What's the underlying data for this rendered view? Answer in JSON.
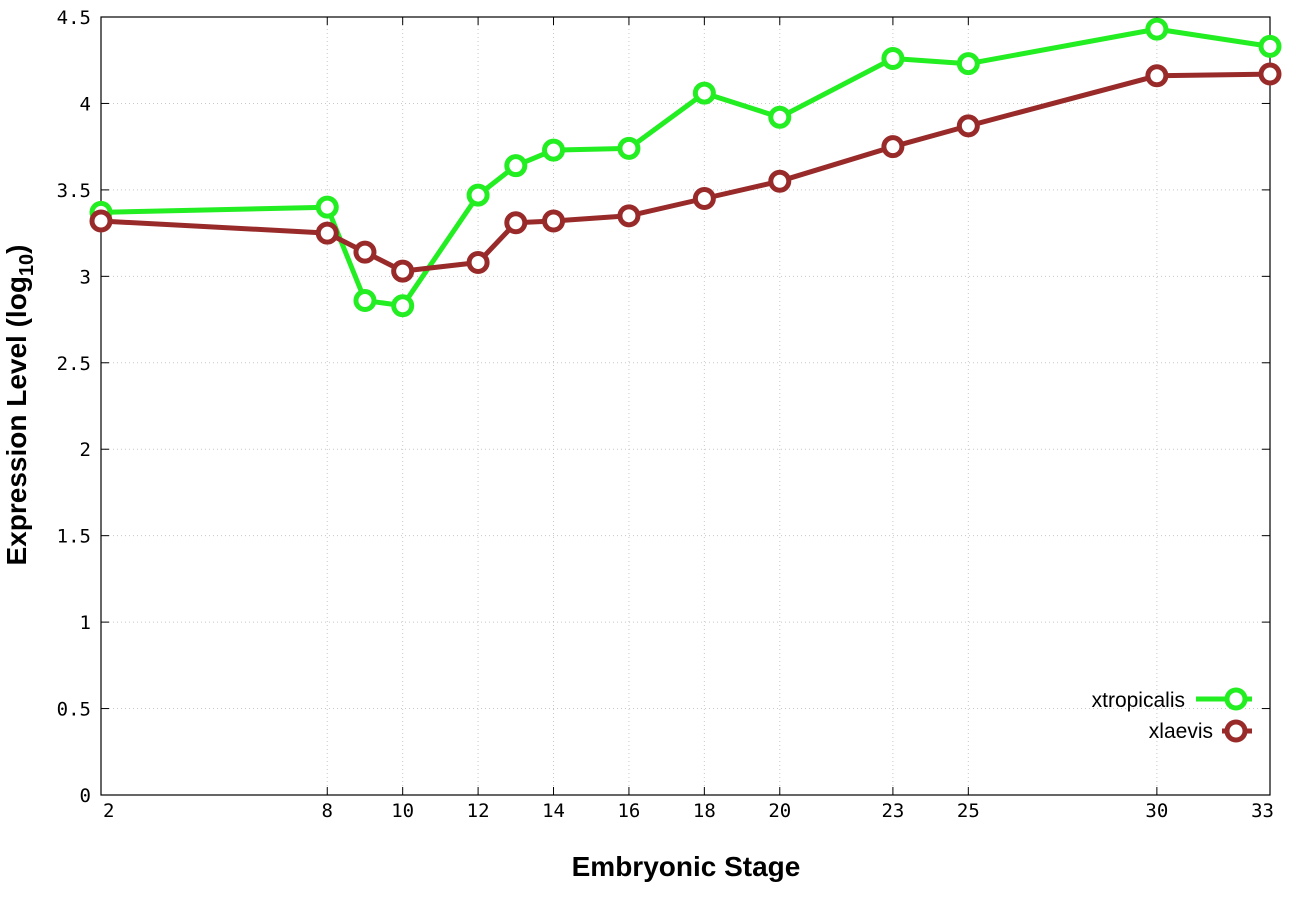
{
  "chart_data": {
    "type": "line",
    "title": "",
    "xlabel": "Embryonic Stage",
    "ylabel_main": "Expression Level (log",
    "ylabel_sub": "10",
    "ylabel_close": ")",
    "x_ticks": [
      2,
      8,
      10,
      12,
      14,
      16,
      18,
      20,
      23,
      25,
      30,
      33
    ],
    "x_tick_labels": [
      "2",
      "8",
      "10",
      "12",
      "14",
      "16",
      "18",
      "20",
      "23",
      "25",
      "30",
      "33"
    ],
    "y_ticks": [
      0,
      0.5,
      1,
      1.5,
      2,
      2.5,
      3,
      3.5,
      4,
      4.5
    ],
    "y_tick_labels": [
      "0",
      "0.5",
      "1",
      "1.5",
      "2",
      "2.5",
      "3",
      "3.5",
      "4",
      "4.5"
    ],
    "ylim": [
      0,
      4.5
    ],
    "grid": true,
    "legend_position": "bottom-right",
    "series": [
      {
        "name": "xtropicalis",
        "color": "#22ee22",
        "x": [
          2,
          8,
          9,
          10,
          12,
          13,
          14,
          16,
          18,
          20,
          23,
          25,
          30,
          33
        ],
        "values": [
          3.37,
          3.4,
          2.86,
          2.83,
          3.47,
          3.64,
          3.73,
          3.74,
          4.06,
          3.92,
          4.26,
          4.23,
          4.43,
          4.33
        ]
      },
      {
        "name": "xlaevis",
        "color": "#992a2a",
        "x": [
          2,
          8,
          9,
          10,
          12,
          13,
          14,
          16,
          18,
          20,
          23,
          25,
          30,
          33
        ],
        "values": [
          3.32,
          3.25,
          3.14,
          3.03,
          3.08,
          3.31,
          3.32,
          3.35,
          3.45,
          3.55,
          3.75,
          3.87,
          4.16,
          4.17
        ]
      }
    ]
  }
}
